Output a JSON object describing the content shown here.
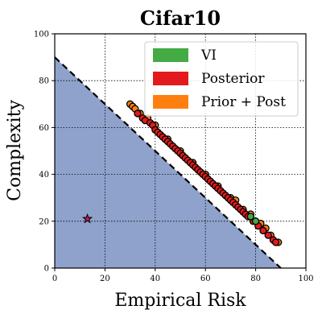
{
  "chart_data": {
    "type": "scatter",
    "title": "Cifar10",
    "xlabel": "Empirical Risk",
    "ylabel": "Complexity",
    "xlim": [
      0,
      100
    ],
    "ylim": [
      0,
      100
    ],
    "xticks": [
      "0",
      "20",
      "40",
      "60",
      "80",
      "100"
    ],
    "yticks": [
      "0",
      "20",
      "40",
      "60",
      "80",
      "100"
    ],
    "grid": true,
    "legend_position": "top-right",
    "feasible_region": {
      "color": "#8fa2cb",
      "boundary": [
        [
          0,
          90
        ],
        [
          90,
          0
        ]
      ]
    },
    "reference_line": {
      "points": [
        [
          0,
          90
        ],
        [
          90,
          0
        ]
      ],
      "style": "dashed",
      "color": "#000000"
    },
    "star_marker": {
      "x": 13,
      "y": 21,
      "color": "#c2185b"
    },
    "series": [
      {
        "name": "VI",
        "color": "#44aa44",
        "points": [
          [
            78,
            22
          ],
          [
            80,
            20
          ]
        ]
      },
      {
        "name": "Posterior",
        "color": "#e31a1c",
        "points": [
          [
            33,
            66
          ],
          [
            35,
            64
          ],
          [
            36,
            63
          ],
          [
            38,
            62
          ],
          [
            39,
            61
          ],
          [
            40,
            59
          ],
          [
            41,
            58
          ],
          [
            42,
            57
          ],
          [
            43,
            56
          ],
          [
            44,
            55
          ],
          [
            45,
            54
          ],
          [
            46,
            53
          ],
          [
            47,
            52
          ],
          [
            48,
            51
          ],
          [
            49,
            50
          ],
          [
            50,
            49
          ],
          [
            51,
            48
          ],
          [
            52,
            47
          ],
          [
            53,
            46
          ],
          [
            54,
            45
          ],
          [
            55,
            44
          ],
          [
            56,
            43
          ],
          [
            57,
            42
          ],
          [
            58,
            41
          ],
          [
            59,
            40
          ],
          [
            60,
            39
          ],
          [
            61,
            38
          ],
          [
            62,
            37
          ],
          [
            63,
            36
          ],
          [
            64,
            35
          ],
          [
            65,
            34
          ],
          [
            66,
            33
          ],
          [
            67,
            32
          ],
          [
            68,
            31
          ],
          [
            69,
            30
          ],
          [
            70,
            29
          ],
          [
            71,
            28
          ],
          [
            72,
            27
          ],
          [
            73,
            26
          ],
          [
            74,
            25
          ],
          [
            75,
            24
          ],
          [
            76,
            23
          ],
          [
            77,
            22
          ],
          [
            79,
            20
          ],
          [
            81,
            18
          ],
          [
            83,
            16
          ],
          [
            85,
            14
          ],
          [
            87,
            12
          ],
          [
            88,
            11
          ]
        ]
      },
      {
        "name": "Prior + Post",
        "color": "#ff7f0e",
        "points": [
          [
            30,
            70
          ],
          [
            31,
            69
          ],
          [
            32,
            68
          ],
          [
            34,
            66
          ],
          [
            37,
            64
          ],
          [
            40,
            61
          ],
          [
            45,
            55
          ],
          [
            50,
            50
          ],
          [
            55,
            45
          ],
          [
            60,
            40
          ],
          [
            65,
            35
          ],
          [
            70,
            30
          ],
          [
            72,
            29
          ],
          [
            75,
            25
          ],
          [
            78,
            23
          ],
          [
            82,
            19
          ],
          [
            84,
            17
          ],
          [
            86,
            14
          ],
          [
            89,
            11
          ]
        ]
      }
    ]
  }
}
